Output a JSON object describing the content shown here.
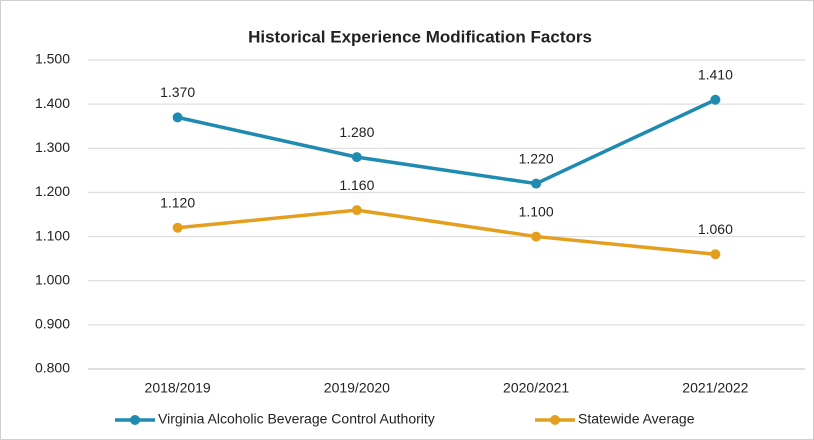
{
  "chart_data": {
    "type": "line",
    "title": "Historical Experience Modification Factors",
    "categories": [
      "2018/2019",
      "2019/2020",
      "2020/2021",
      "2021/2022"
    ],
    "series": [
      {
        "name": "Virginia Alcoholic Beverage Control Authority",
        "color": "#1f8bb1",
        "values": [
          1.37,
          1.28,
          1.22,
          1.41
        ],
        "value_labels": [
          "1.370",
          "1.280",
          "1.220",
          "1.410"
        ]
      },
      {
        "name": "Statewide Average",
        "color": "#e49f1f",
        "values": [
          1.12,
          1.16,
          1.1,
          1.06
        ],
        "value_labels": [
          "1.120",
          "1.160",
          "1.100",
          "1.060"
        ]
      }
    ],
    "ylim": [
      0.8,
      1.5
    ],
    "yticks": [
      {
        "value": 0.8,
        "label": "0.800"
      },
      {
        "value": 0.9,
        "label": "0.900"
      },
      {
        "value": 1.0,
        "label": "1.000"
      },
      {
        "value": 1.1,
        "label": "1.100"
      },
      {
        "value": 1.2,
        "label": "1.200"
      },
      {
        "value": 1.3,
        "label": "1.300"
      },
      {
        "value": 1.4,
        "label": "1.400"
      },
      {
        "value": 1.5,
        "label": "1.500"
      }
    ],
    "grid": true,
    "legend": "bottom"
  }
}
